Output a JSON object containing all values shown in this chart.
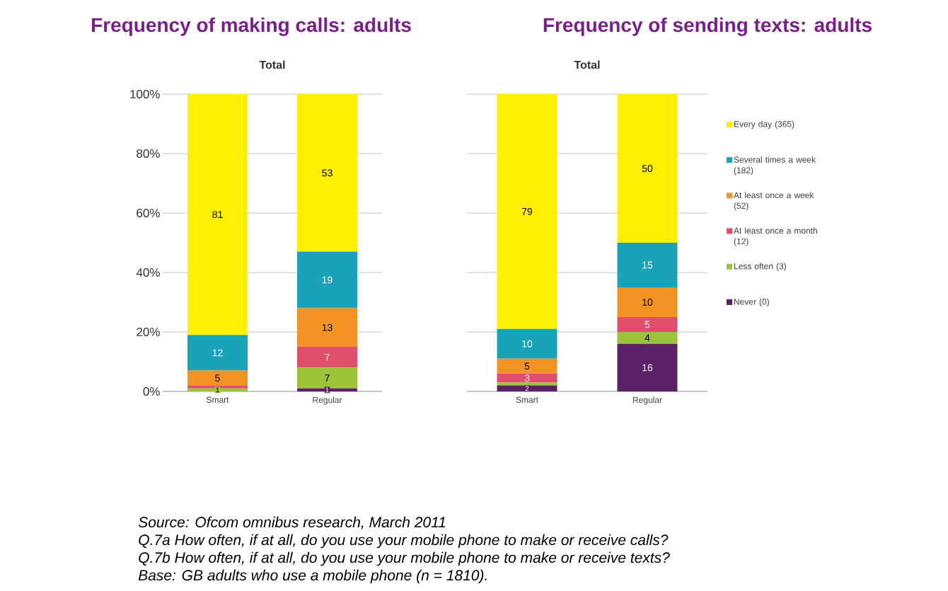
{
  "chart_data": [
    {
      "type": "bar",
      "stacked": true,
      "title": "Frequency of making calls: adults",
      "subtitle": "Total",
      "categories": [
        "Smart",
        "Regular"
      ],
      "ylim": [
        0,
        100
      ],
      "yticks": [
        {
          "value": 0,
          "label": "0%"
        },
        {
          "value": 20,
          "label": "20%"
        },
        {
          "value": 40,
          "label": "40%"
        },
        {
          "value": 60,
          "label": "60%"
        },
        {
          "value": 80,
          "label": "80%"
        },
        {
          "value": 100,
          "label": "100%"
        }
      ],
      "grid": "y",
      "legend": false,
      "series": [
        {
          "color": "#5b2167",
          "values": [
            0,
            1
          ],
          "value_labels": [
            null,
            "1"
          ]
        },
        {
          "color": "#9dc33b",
          "values": [
            1,
            7
          ],
          "value_labels": [
            "1",
            "7"
          ]
        },
        {
          "color": "#e04e6b",
          "values": [
            1,
            7
          ],
          "value_labels": [
            null,
            "7"
          ]
        },
        {
          "color": "#f39325",
          "values": [
            5,
            13
          ],
          "value_labels": [
            "5",
            "13"
          ]
        },
        {
          "color": "#1aa3b8",
          "values": [
            12,
            19
          ],
          "value_labels": [
            "12",
            "19"
          ]
        },
        {
          "color": "#ffef00",
          "values": [
            81,
            53
          ],
          "value_labels": [
            "81",
            "53"
          ]
        }
      ]
    },
    {
      "type": "bar",
      "stacked": true,
      "title": "Frequency of sending texts: adults",
      "subtitle": "Total",
      "categories": [
        "Smart",
        "Regular"
      ],
      "ylim": [
        0,
        100
      ],
      "yticks": [
        0,
        20,
        40,
        60,
        80,
        100
      ],
      "tick_labels": "x",
      "grid": "y",
      "legend": "right",
      "series": [
        {
          "name": "Never (0)",
          "color": "#5b2167",
          "values": [
            2,
            16
          ],
          "value_labels": [
            "2",
            "16"
          ]
        },
        {
          "name": "Less often (3)",
          "color": "#9dc33b",
          "values": [
            1,
            4
          ],
          "value_labels": [
            null,
            "4"
          ]
        },
        {
          "name": "At least once a month (12)",
          "color": "#e04e6b",
          "values": [
            3,
            5
          ],
          "value_labels": [
            "3",
            "5"
          ]
        },
        {
          "name": "At least once a week (52)",
          "color": "#f39325",
          "values": [
            5,
            10
          ],
          "value_labels": [
            "5",
            "10"
          ]
        },
        {
          "name": "Several times a week (182)",
          "color": "#1aa3b8",
          "values": [
            10,
            15
          ],
          "value_labels": [
            "10",
            "15"
          ]
        },
        {
          "name": "Every day (365)",
          "color": "#ffef00",
          "values": [
            79,
            50
          ],
          "value_labels": [
            "79",
            "50"
          ]
        }
      ],
      "annotations": [
        "Source: Ofcom omnibus research, March 2011",
        "Q.7a How often, if at all, do you use your mobile phone to make or receive calls?",
        "Q.7b How often, if at all, do you use your mobile phone to make or receive texts?",
        "Base: GB adults who use a mobile phone (n = 1810)."
      ]
    }
  ]
}
